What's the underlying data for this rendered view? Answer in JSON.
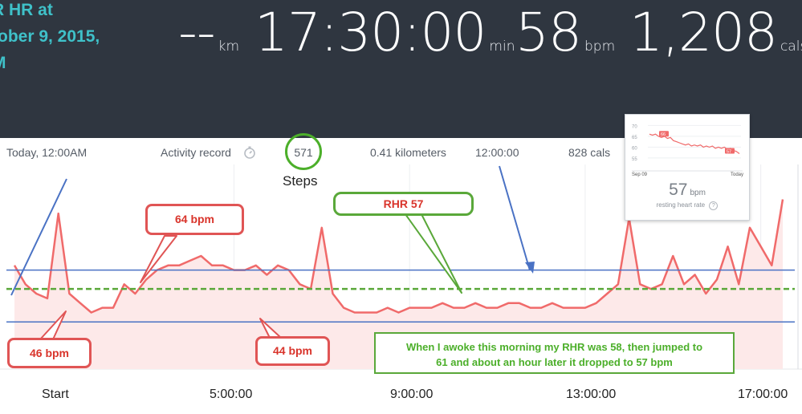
{
  "header": {
    "title_lines": [
      "R HR at",
      "tober 9, 2015,",
      "M"
    ],
    "distance": {
      "value": "--",
      "unit": "km"
    },
    "duration": {
      "value": "17:30:00",
      "unit": "min"
    },
    "heart_rate": {
      "value": "58",
      "unit": "bpm"
    },
    "calories": {
      "value": "1,208",
      "unit": "cals"
    }
  },
  "info_bar": {
    "date": "Today, 12:00AM",
    "activity_label": "Activity record",
    "steps_value": "571",
    "steps_label": "Steps",
    "distance": "0.41 kilometers",
    "time": "12:00:00",
    "calories": "828 cals"
  },
  "mini_widget": {
    "y_ticks": [
      "70",
      "65",
      "60",
      "55"
    ],
    "start_label": "Sep 09",
    "end_label": "Today",
    "first_badge": "66",
    "last_badge": "57",
    "value": "57",
    "unit": "bpm",
    "caption": "resting heart rate",
    "chart_data": {
      "type": "line",
      "x": [
        0,
        1,
        2,
        3,
        4,
        5,
        6,
        7,
        8,
        9,
        10,
        11,
        12,
        13,
        14,
        15,
        16,
        17,
        18,
        19,
        20,
        21,
        22,
        23,
        24,
        25,
        26,
        27,
        28,
        29,
        30
      ],
      "values": [
        66,
        65.5,
        66,
        65,
        64.5,
        65,
        64,
        64.5,
        63,
        62.5,
        62,
        61.5,
        61,
        61.5,
        60.5,
        61,
        60.5,
        61,
        60,
        60.5,
        60,
        60.5,
        59.5,
        60,
        59.5,
        60,
        59,
        59.5,
        58.5,
        58,
        57
      ],
      "xlabels": [
        "Sep 09",
        "Today"
      ],
      "ylim": [
        52,
        72
      ]
    }
  },
  "callouts": {
    "hr64": "64 bpm",
    "hr46": "46 bpm",
    "hr44": "44 bpm",
    "rhr": "RHR 57",
    "note_line1": "When I awoke this morning my RHR was 58, then jumped to",
    "note_line2": "61 and about an hour later it dropped to 57 bpm"
  },
  "colors": {
    "header_bg": "#2f3640",
    "title": "#3fc1c9",
    "hr_line": "#f06a6a",
    "hr_fill": "#fde9e9",
    "reference_lines": "#4a72c4",
    "rhr_line": "#5aa83a",
    "callout_red": "#e05555",
    "steps_circle": "#4caf2a"
  },
  "chart_data": {
    "type": "line",
    "title": "",
    "xlabel": "",
    "ylabel": "",
    "x_tick_labels": [
      "Start",
      "5:00:00",
      "9:00:00",
      "13:00:00",
      "17:00:00"
    ],
    "x_hours": [
      0,
      0.25,
      0.5,
      0.75,
      1,
      1.25,
      1.5,
      1.75,
      2,
      2.25,
      2.5,
      2.75,
      3,
      3.25,
      3.5,
      3.75,
      4,
      4.25,
      4.5,
      4.75,
      5,
      5.25,
      5.5,
      5.75,
      6,
      6.25,
      6.5,
      6.75,
      7,
      7.25,
      7.5,
      7.75,
      8,
      8.25,
      8.5,
      8.75,
      9,
      9.25,
      9.5,
      9.75,
      10,
      10.25,
      10.5,
      10.75,
      11,
      11.25,
      11.5,
      11.75,
      12,
      12.25,
      12.5,
      12.75,
      13,
      13.25,
      13.5,
      13.75,
      14,
      14.25,
      14.5,
      14.75,
      15,
      15.25,
      15.5,
      15.75,
      16,
      16.25,
      16.5,
      16.75,
      17,
      17.25,
      17.5
    ],
    "series": [
      {
        "values": [
          62,
          58,
          56,
          55,
          73,
          56,
          54,
          52,
          53,
          53,
          58,
          56,
          59,
          61,
          62,
          62,
          63,
          64,
          62,
          62,
          61,
          61,
          62,
          60,
          62,
          61,
          58,
          57,
          70,
          56,
          53,
          52,
          52,
          52,
          53,
          52,
          53,
          53,
          53,
          54,
          53,
          53,
          54,
          53,
          53,
          54,
          54,
          53,
          53,
          54,
          53,
          53,
          53,
          54,
          56,
          58,
          72,
          58,
          57,
          58,
          64,
          58,
          60,
          56,
          59,
          66,
          58,
          70,
          66,
          62,
          76
        ]
      }
    ],
    "reference_lines": {
      "upper_bpm": 61,
      "lower_bpm": 50,
      "rhr_bpm": 57
    },
    "ylim": [
      40,
      80
    ]
  }
}
